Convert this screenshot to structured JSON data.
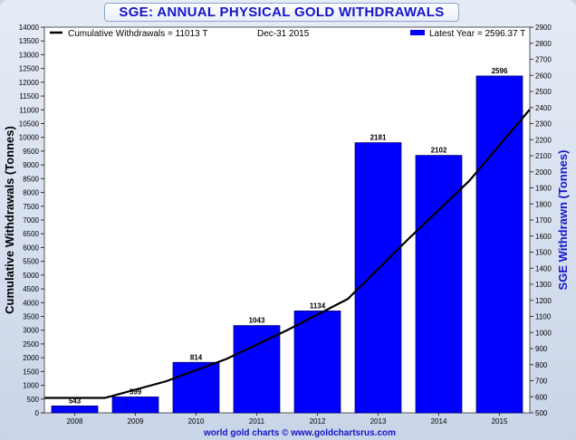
{
  "chart_data": {
    "type": "bar",
    "title": "SGE: ANNUAL PHYSICAL GOLD WITHDRAWALS",
    "categories": [
      "2008",
      "2009",
      "2010",
      "2011",
      "2012",
      "2013",
      "2014",
      "2015"
    ],
    "series": [
      {
        "name": "Latest Year",
        "type": "bar",
        "axis": "right",
        "color": "#0000ff",
        "values": [
          543,
          599,
          814,
          1043,
          1134,
          2181,
          2102,
          2596
        ]
      },
      {
        "name": "Cumulative Withdrawals",
        "type": "line",
        "axis": "left",
        "color": "#000000",
        "values": [
          543,
          1142,
          1956,
          2999,
          4133,
          6314,
          8416,
          11013
        ]
      }
    ],
    "left_axis": {
      "label": "Cumulative Withdrawals (Tonnes)",
      "min": 0,
      "max": 14000,
      "step": 500
    },
    "right_axis": {
      "label": "SGE Withdrawn (Tonnes)",
      "min": 500,
      "max": 2900,
      "step": 100
    },
    "legend": {
      "line_text": "Cumulative Withdrawals = 11013 T",
      "date_text": "Dec-31  2015",
      "bar_text": "Latest Year  = 2596.37 T"
    },
    "footer": "world gold charts © www.goldchartsrus.com"
  }
}
